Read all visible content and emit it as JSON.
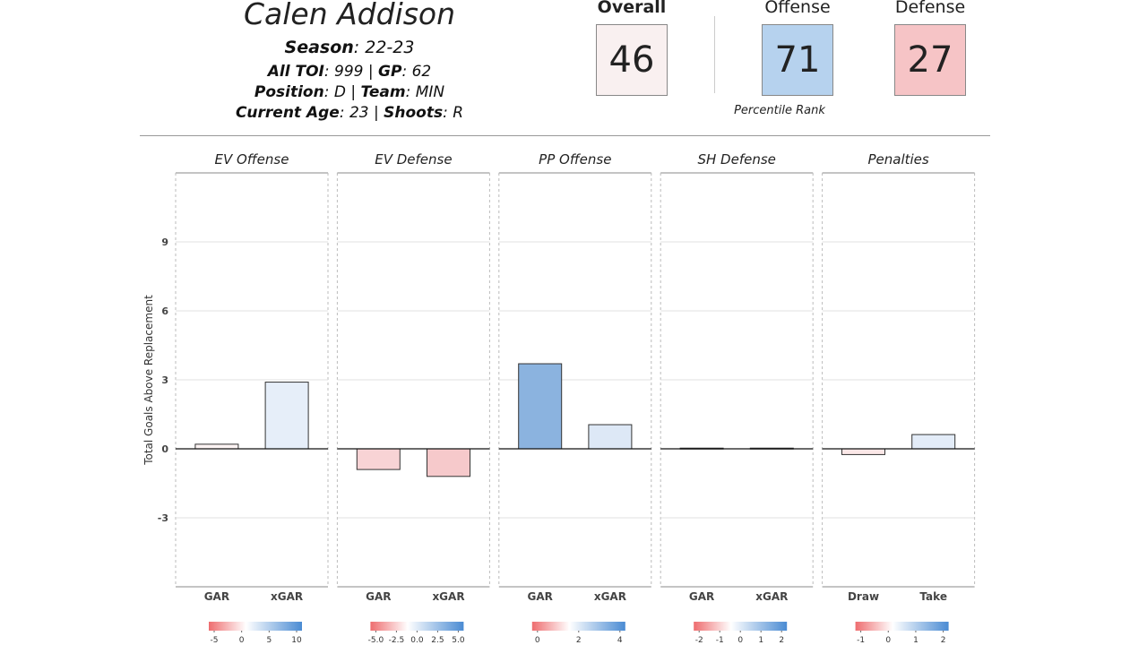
{
  "player": {
    "name": "Calen Addison",
    "season_label": "Season",
    "season": "22-23",
    "toi_label": "All TOI",
    "toi": "999",
    "gp_label": "GP",
    "gp": "62",
    "position_label": "Position",
    "position": "D",
    "team_label": "Team",
    "team": "MIN",
    "age_label": "Current Age",
    "age": "23",
    "shoots_label": "Shoots",
    "shoots": "R"
  },
  "summary": {
    "overall_label": "Overall",
    "overall": "46",
    "offense_label": "Offense",
    "offense": "71",
    "defense_label": "Defense",
    "defense": "27",
    "percentile_label": "Percentile Rank",
    "colors": {
      "overall": "#f9f0f0",
      "offense": "#b6d2ee",
      "defense": "#f6c4c6"
    }
  },
  "chart_data": {
    "type": "bar",
    "ylabel": "Total Goals Above Replacement",
    "ylim": [
      -6,
      12
    ],
    "yticks": [
      -3,
      0,
      3,
      6,
      9
    ],
    "grid": true,
    "panels": [
      {
        "title": "EV Offense",
        "categories": [
          "GAR",
          "xGAR"
        ],
        "values": [
          0.2,
          2.9
        ],
        "colors": [
          "#fdf4f4",
          "#e6eef9"
        ],
        "legend_ticks": [
          "-5",
          "0",
          "5",
          "10"
        ]
      },
      {
        "title": "EV Defense",
        "categories": [
          "GAR",
          "xGAR"
        ],
        "values": [
          -0.9,
          -1.2
        ],
        "colors": [
          "#f8d3d5",
          "#f6c9cb"
        ],
        "legend_ticks": [
          "-5.0",
          "-2.5",
          "0.0",
          "2.5",
          "5.0"
        ]
      },
      {
        "title": "PP Offense",
        "categories": [
          "GAR",
          "xGAR"
        ],
        "values": [
          3.7,
          1.05
        ],
        "colors": [
          "#8bb3df",
          "#dde8f6"
        ],
        "legend_ticks": [
          "0",
          "2",
          "4"
        ]
      },
      {
        "title": "SH Defense",
        "categories": [
          "GAR",
          "xGAR"
        ],
        "values": [
          0.03,
          0.03
        ],
        "colors": [
          "#f0f0f0",
          "#f0f0f0"
        ],
        "legend_ticks": [
          "-2",
          "-1",
          "0",
          "1",
          "2"
        ]
      },
      {
        "title": "Penalties",
        "categories": [
          "Draw",
          "Take"
        ],
        "values": [
          -0.25,
          0.62
        ],
        "colors": [
          "#fbe7e7",
          "#e3ecf8"
        ],
        "legend_ticks": [
          "-1",
          "0",
          "1",
          "2"
        ]
      }
    ]
  }
}
